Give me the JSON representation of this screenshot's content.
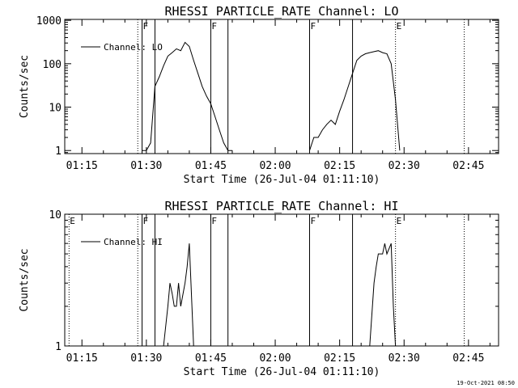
{
  "footer_timestamp": "19-Oct-2021 08:50",
  "chart_data": [
    {
      "type": "line",
      "title": "RHESSI PARTICLE_RATE Channel: LO",
      "xlabel": "Start Time (26-Jul-04 01:11:10)",
      "ylabel": "Counts/sec",
      "yscale": "log",
      "xlim": [
        "01:11",
        "02:52"
      ],
      "ylim": [
        0.85,
        1050
      ],
      "xticks": [
        "01:15",
        "01:30",
        "01:45",
        "02:00",
        "02:15",
        "02:30",
        "02:45"
      ],
      "yticks": [
        1,
        10,
        100,
        1000
      ],
      "ytick_labels": [
        "1",
        "10",
        "100",
        "1000"
      ],
      "legend": {
        "label": "Channel: LO",
        "position": "top-left"
      },
      "markers": [
        {
          "time": "01:28",
          "label": "",
          "style": "dotted"
        },
        {
          "time": "01:29",
          "label": "F",
          "style": "solid"
        },
        {
          "time": "01:32",
          "label": "",
          "style": "solid"
        },
        {
          "time": "01:45",
          "label": "F",
          "style": "solid"
        },
        {
          "time": "01:49",
          "label": "",
          "style": "solid"
        },
        {
          "time": "02:08",
          "label": "F",
          "style": "solid"
        },
        {
          "time": "02:18",
          "label": "",
          "style": "solid"
        },
        {
          "time": "02:28",
          "label": "E",
          "style": "dotted"
        },
        {
          "time": "02:44",
          "label": "",
          "style": "dotted"
        }
      ],
      "series": [
        {
          "name": "Channel: LO",
          "x": [
            "01:29",
            "01:30",
            "01:31",
            "01:32",
            "01:33",
            "01:34",
            "01:35",
            "01:36",
            "01:37",
            "01:38",
            "01:39",
            "01:40",
            "01:41",
            "01:42",
            "01:43",
            "01:44",
            "01:45",
            "01:46",
            "01:47",
            "01:48",
            "01:49",
            "01:50"
          ],
          "y": [
            1,
            1,
            1.5,
            30,
            50,
            90,
            150,
            180,
            220,
            200,
            310,
            250,
            120,
            60,
            30,
            18,
            12,
            6,
            3,
            1.5,
            1,
            1
          ]
        },
        {
          "name": "Channel: LO",
          "x": [
            "02:08",
            "02:09",
            "02:10",
            "02:11",
            "02:12",
            "02:13",
            "02:14",
            "02:15",
            "02:16",
            "02:17",
            "02:18",
            "02:19",
            "02:20",
            "02:21",
            "02:22",
            "02:23",
            "02:24",
            "02:25",
            "02:26",
            "02:27",
            "02:28",
            "02:29"
          ],
          "y": [
            1,
            2,
            2,
            3,
            4,
            5,
            4,
            8,
            15,
            30,
            60,
            120,
            150,
            170,
            180,
            190,
            200,
            180,
            170,
            100,
            15,
            1
          ]
        }
      ]
    },
    {
      "type": "line",
      "title": "RHESSI PARTICLE_RATE Channel: HI",
      "xlabel": "Start Time (26-Jul-04 01:11:10)",
      "ylabel": "Counts/sec",
      "yscale": "log",
      "xlim": [
        "01:11",
        "02:52"
      ],
      "ylim": [
        1,
        10
      ],
      "xticks": [
        "01:15",
        "01:30",
        "01:45",
        "02:00",
        "02:15",
        "02:30",
        "02:45"
      ],
      "yticks": [
        1,
        10
      ],
      "ytick_labels": [
        "1",
        "10"
      ],
      "legend": {
        "label": "Channel: HI",
        "position": "top-left"
      },
      "markers": [
        {
          "time": "01:12",
          "label": "E",
          "style": "dotted"
        },
        {
          "time": "01:28",
          "label": "",
          "style": "dotted"
        },
        {
          "time": "01:29",
          "label": "F",
          "style": "solid"
        },
        {
          "time": "01:32",
          "label": "",
          "style": "solid"
        },
        {
          "time": "01:45",
          "label": "F",
          "style": "solid"
        },
        {
          "time": "01:49",
          "label": "",
          "style": "solid"
        },
        {
          "time": "02:08",
          "label": "F",
          "style": "solid"
        },
        {
          "time": "02:18",
          "label": "",
          "style": "solid"
        },
        {
          "time": "02:28",
          "label": "E",
          "style": "dotted"
        },
        {
          "time": "02:44",
          "label": "",
          "style": "dotted"
        }
      ],
      "series": [
        {
          "name": "Channel: HI",
          "x": [
            "01:34",
            "01:35",
            "01:35.5",
            "01:36",
            "01:36.5",
            "01:37",
            "01:37.5",
            "01:38",
            "01:39",
            "01:39.5",
            "01:40",
            "01:41"
          ],
          "y": [
            1,
            2,
            3,
            2.5,
            2,
            2,
            3,
            2,
            3,
            4,
            6,
            1
          ]
        },
        {
          "name": "Channel: HI",
          "x": [
            "02:22",
            "02:23",
            "02:23.5",
            "02:24",
            "02:25",
            "02:25.5",
            "02:26",
            "02:27",
            "02:27.5",
            "02:28"
          ],
          "y": [
            1,
            3,
            4,
            5,
            5,
            6,
            5,
            6,
            2,
            1
          ]
        }
      ]
    }
  ]
}
